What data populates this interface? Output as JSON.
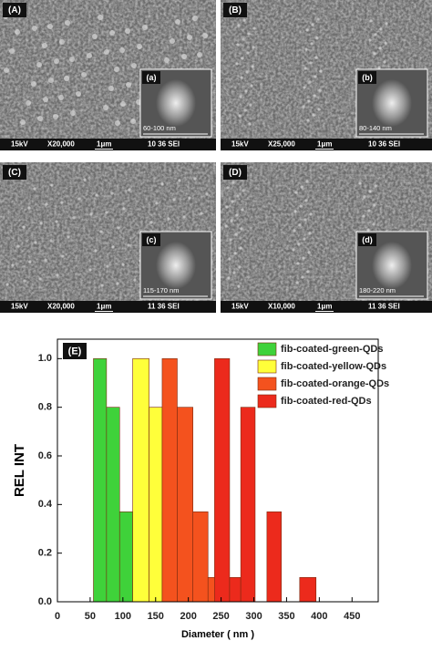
{
  "panels": [
    {
      "label": "(A)",
      "inset_label": "(a)",
      "size": "60-100 nm",
      "kv": "15kV",
      "mag": "X20,000",
      "scale": "1μm",
      "code": "10 36 SEI"
    },
    {
      "label": "(B)",
      "inset_label": "(b)",
      "size": "80-140 nm",
      "kv": "15kV",
      "mag": "X25,000",
      "scale": "1μm",
      "code": "10 36 SEI"
    },
    {
      "label": "(C)",
      "inset_label": "(c)",
      "size": "115-170 nm",
      "kv": "15kV",
      "mag": "X20,000",
      "scale": "1μm",
      "code": "11 36 SEI"
    },
    {
      "label": "(D)",
      "inset_label": "(d)",
      "size": "180-220 nm",
      "kv": "15kV",
      "mag": "X10,000",
      "scale": "1μm",
      "code": "11 36 SEI"
    }
  ],
  "chart_data": {
    "type": "histogram",
    "panel_label": "(E)",
    "x_label": "Diameter ( nm )",
    "y_label": "REL INT",
    "xlim": [
      0,
      490
    ],
    "ylim": [
      0,
      1.08
    ],
    "xticks": [
      0,
      50,
      100,
      150,
      200,
      250,
      300,
      350,
      400,
      450
    ],
    "yticks": [
      {
        "value": 0,
        "label": "0.0"
      },
      0.2,
      0.4,
      0.6,
      0.8,
      {
        "value": 1,
        "label": "1.0"
      }
    ],
    "legend": "upper right",
    "series": [
      {
        "name": "fib-coated-green-QDs",
        "color": "#3fd23a",
        "bins": [
          55,
          75,
          95,
          115
        ],
        "values": [
          1.0,
          0.8,
          0.37
        ]
      },
      {
        "name": "fib-coated-yellow-QDs",
        "color": "#ffff3a",
        "bins": [
          115,
          140,
          160,
          185,
          210,
          230
        ],
        "values": [
          1.0,
          0.8,
          0.37,
          0,
          0.1
        ]
      },
      {
        "name": "fib-coated-orange-QDs",
        "color": "#f4521e",
        "bins": [
          160,
          183,
          207,
          230,
          253
        ],
        "values": [
          1.0,
          0.8,
          0.37,
          0.1
        ]
      },
      {
        "name": "fib-coated-red-QDs",
        "color": "#ec2a1c",
        "bins": [
          240,
          263,
          280,
          302,
          320,
          342,
          370,
          395
        ],
        "values": [
          1.0,
          0.1,
          0.8,
          0,
          0.37,
          0,
          0.1
        ]
      }
    ]
  }
}
